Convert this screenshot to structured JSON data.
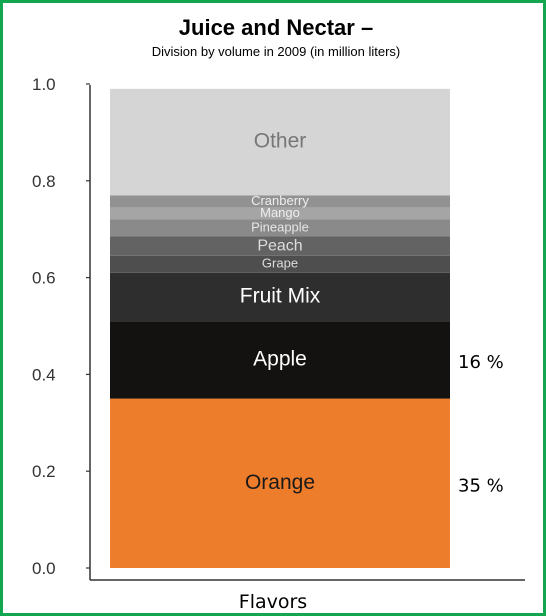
{
  "chart_data": {
    "type": "bar",
    "title": "Juice and Nectar –",
    "subtitle": "Division by volume in 2009 (in million liters)",
    "xlabel": "Flavors",
    "ylabel": "",
    "ylim": [
      0,
      1.0
    ],
    "yticks": [
      "0.0",
      "0.2",
      "0.4",
      "0.6",
      "0.8",
      "1.0"
    ],
    "grid": false,
    "stacked": true,
    "segments": [
      {
        "name": "Orange",
        "value": 0.35,
        "color": "#ee7d2b",
        "text_color": "#1a1a1a",
        "pct": "35 %"
      },
      {
        "name": "Apple",
        "value": 0.16,
        "color": "#141210",
        "text_color": "#ffffff",
        "pct": "16 %"
      },
      {
        "name": "Fruit Mix",
        "value": 0.1,
        "color": "#2e2e2e",
        "text_color": "#ffffff"
      },
      {
        "name": "Grape",
        "value": 0.035,
        "color": "#4e4e4e",
        "text_color": "#dddddd"
      },
      {
        "name": "Peach",
        "value": 0.04,
        "color": "#636363",
        "text_color": "#dddddd"
      },
      {
        "name": "Pineapple",
        "value": 0.035,
        "color": "#8a8a8a",
        "text_color": "#e6e6e6"
      },
      {
        "name": "Mango",
        "value": 0.025,
        "color": "#a5a5a5",
        "text_color": "#eeeeee"
      },
      {
        "name": "Cranberry",
        "value": 0.025,
        "color": "#929292",
        "text_color": "#eeeeee"
      },
      {
        "name": "Other",
        "value": 0.22,
        "color": "#d5d5d5",
        "text_color": "#777777"
      }
    ]
  }
}
